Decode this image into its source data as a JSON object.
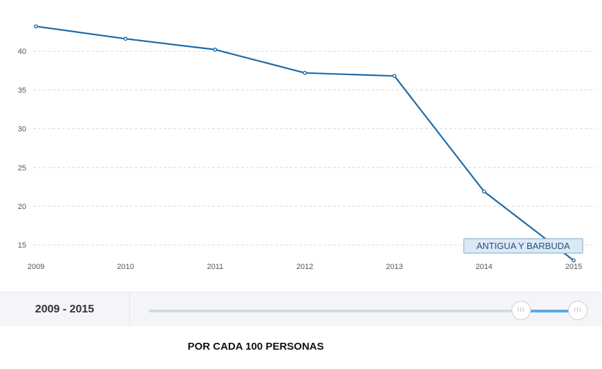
{
  "chart_data": {
    "type": "line",
    "x": [
      "2009",
      "2010",
      "2011",
      "2012",
      "2013",
      "2014",
      "2015"
    ],
    "series": [
      {
        "name": "ANTIGUA Y BARBUDA",
        "values": [
          43.2,
          41.6,
          40.2,
          37.2,
          36.8,
          21.9,
          13.0
        ]
      }
    ],
    "yticks": [
      15,
      20,
      25,
      30,
      35,
      40
    ],
    "ylim": [
      13.5,
      45
    ],
    "grid": true,
    "color": "#1a6aa8"
  },
  "range": {
    "label": "2009 - 2015",
    "handle_glyph": "III"
  },
  "footer": {
    "title": "POR CADA 100 PERSONAS"
  }
}
